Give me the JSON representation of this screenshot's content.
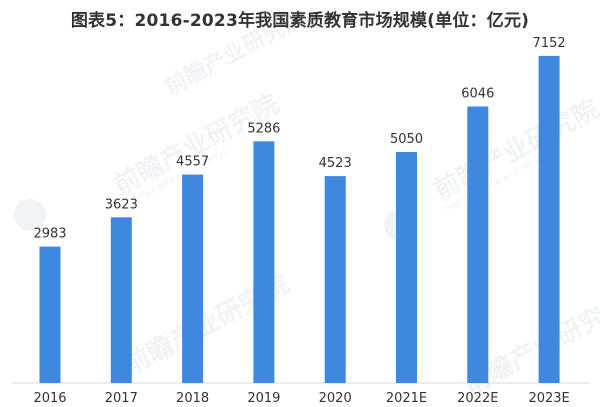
{
  "chart_data": {
    "type": "bar",
    "title": "图表5：2016-2023年我国素质教育市场规模(单位：亿元)",
    "categories": [
      "2016",
      "2017",
      "2018",
      "2019",
      "2020",
      "2021E",
      "2022E",
      "2023E"
    ],
    "values": [
      2983,
      3623,
      4557,
      5286,
      4523,
      5050,
      6046,
      7152
    ],
    "xlabel": "",
    "ylabel": "",
    "ylim": [
      0,
      7500
    ],
    "grid": false,
    "legend": "none"
  },
  "colors": {
    "bar": "#3f88e0",
    "label": "#333333",
    "axis": "#d9d9d9"
  },
  "watermark": {
    "name": "前瞻产业研究院",
    "subtitle": "中国产业咨询领导者 4008 399 830"
  }
}
